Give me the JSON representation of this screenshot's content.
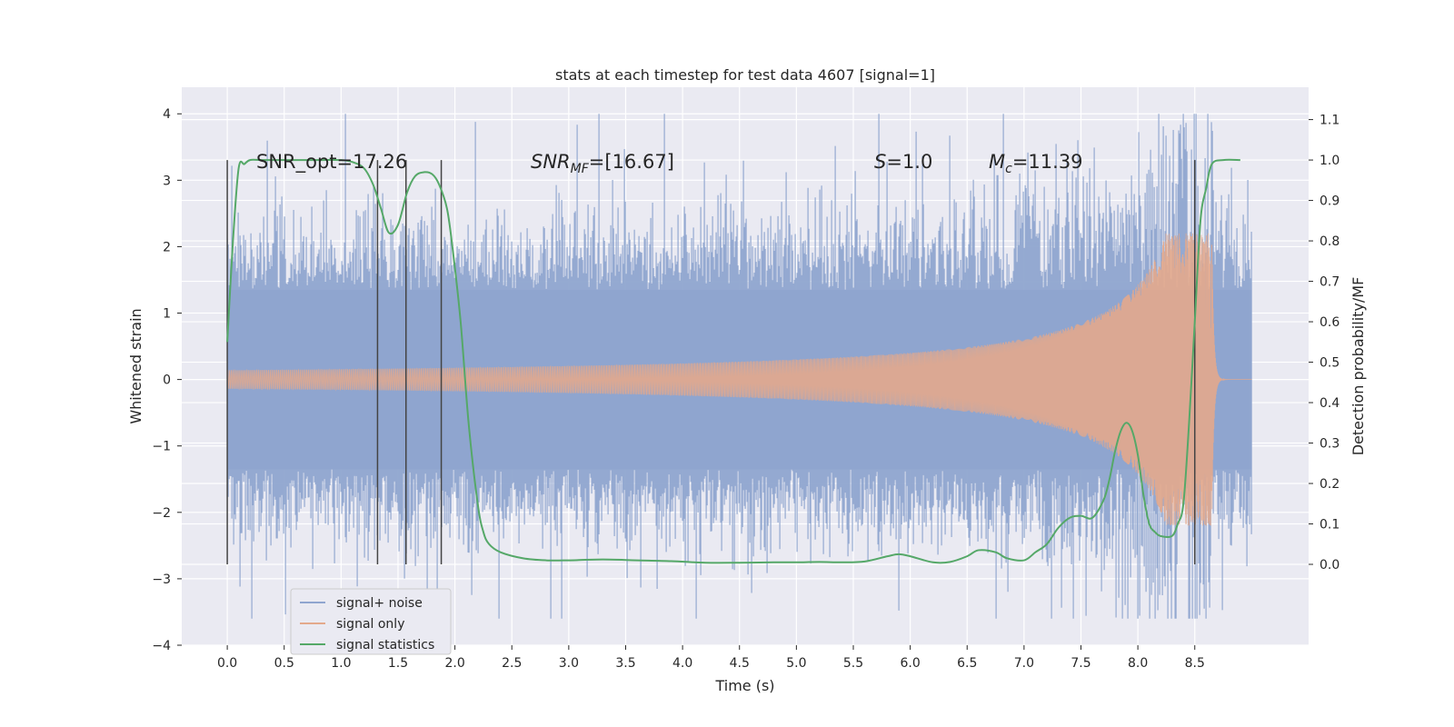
{
  "chart_data": {
    "type": "line",
    "title": "stats at each timestep for test data 4607 [signal=1]",
    "xlabel": "Time (s)",
    "ylabel": "Whitened strain",
    "ylabel_right": "Detection probability/MF",
    "xlim": [
      -0.4,
      9.5
    ],
    "ylim": [
      -4.0,
      4.4
    ],
    "ylim_right": [
      -0.2,
      1.18
    ],
    "x_ticks": [
      "0.0",
      "0.5",
      "1.0",
      "1.5",
      "2.0",
      "2.5",
      "3.0",
      "3.5",
      "4.0",
      "4.5",
      "5.0",
      "5.5",
      "6.0",
      "6.5",
      "7.0",
      "7.5",
      "8.0",
      "8.5"
    ],
    "y_ticks": [
      "4",
      "3",
      "2",
      "1",
      "0",
      "−1",
      "−2",
      "−3",
      "−4"
    ],
    "y_right_ticks": [
      "1.1",
      "1.0",
      "0.9",
      "0.8",
      "0.7",
      "0.6",
      "0.5",
      "0.4",
      "0.3",
      "0.2",
      "0.1",
      "0.0"
    ],
    "annotations": {
      "snr_opt": "SNR_opt=17.26",
      "snr_mf_main": "SNR",
      "snr_mf_sub": "MF",
      "snr_mf_value": "=[16.67]",
      "s_main": "S",
      "s_value": "=1.0",
      "mc_main": "M",
      "mc_sub": "c",
      "mc_value": "=11.39"
    },
    "vertical_markers_x": [
      0.0,
      1.32,
      1.57,
      1.88,
      8.5
    ],
    "series": [
      {
        "name": "signal+ noise",
        "color": "#8fa5cf",
        "axis": "left",
        "description_range": [
          -3.6,
          4.0
        ],
        "x_range": [
          0.0,
          9.0
        ]
      },
      {
        "name": "signal only",
        "color": "#e3a98c",
        "axis": "left",
        "chirp": {
          "t_merger": 8.65,
          "peak_amplitude": 2.2,
          "t_end": 9.0
        }
      },
      {
        "name": "signal statistics",
        "color": "#55a868",
        "axis": "right",
        "x": [
          0.0,
          0.05,
          0.1,
          0.15,
          0.2,
          0.3,
          0.5,
          0.8,
          1.0,
          1.1,
          1.2,
          1.28,
          1.35,
          1.42,
          1.5,
          1.58,
          1.65,
          1.73,
          1.8,
          1.86,
          1.93,
          1.98,
          2.05,
          2.12,
          2.2,
          2.25,
          2.3,
          2.4,
          2.6,
          2.8,
          3.0,
          3.3,
          3.6,
          3.9,
          4.2,
          4.5,
          4.8,
          5.0,
          5.2,
          5.4,
          5.6,
          5.8,
          5.9,
          6.0,
          6.2,
          6.35,
          6.5,
          6.6,
          6.75,
          6.85,
          7.0,
          7.1,
          7.2,
          7.3,
          7.4,
          7.5,
          7.6,
          7.7,
          7.75,
          7.8,
          7.85,
          7.9,
          7.95,
          8.0,
          8.05,
          8.1,
          8.15,
          8.2,
          8.3,
          8.35,
          8.4,
          8.45,
          8.5,
          8.55,
          8.6,
          8.65,
          8.75,
          8.9
        ],
        "y": [
          0.55,
          0.8,
          0.98,
          0.99,
          1.0,
          1.0,
          1.0,
          1.0,
          1.0,
          0.995,
          0.98,
          0.94,
          0.88,
          0.82,
          0.84,
          0.92,
          0.96,
          0.97,
          0.965,
          0.94,
          0.88,
          0.78,
          0.6,
          0.35,
          0.15,
          0.08,
          0.05,
          0.03,
          0.015,
          0.01,
          0.01,
          0.012,
          0.01,
          0.008,
          0.004,
          0.004,
          0.005,
          0.005,
          0.006,
          0.005,
          0.007,
          0.02,
          0.025,
          0.02,
          0.005,
          0.006,
          0.02,
          0.035,
          0.03,
          0.015,
          0.01,
          0.03,
          0.05,
          0.09,
          0.115,
          0.12,
          0.115,
          0.16,
          0.21,
          0.28,
          0.33,
          0.35,
          0.33,
          0.27,
          0.17,
          0.1,
          0.08,
          0.07,
          0.07,
          0.1,
          0.15,
          0.35,
          0.6,
          0.85,
          0.93,
          0.99,
          1.0,
          1.0
        ]
      }
    ],
    "legend_placement": "lower-left"
  },
  "colors": {
    "background": "#ffffff",
    "plot_bg": "#eaeaf2",
    "grid": "#ffffff",
    "text": "#262626",
    "marker_line": "#444444"
  }
}
